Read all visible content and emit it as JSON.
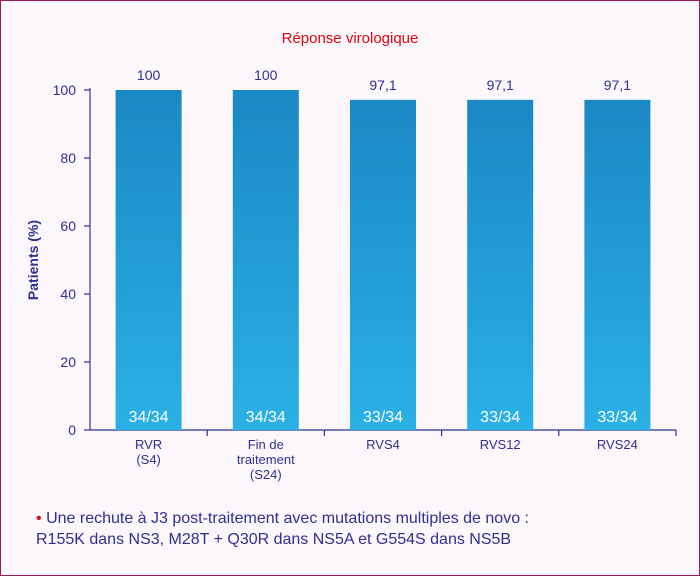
{
  "chart_data": {
    "type": "bar",
    "title": "Réponse virologique",
    "ylabel": "Patients (%)",
    "xlabel": "",
    "ylim": [
      0,
      100
    ],
    "yticks": [
      0,
      20,
      40,
      60,
      80,
      100
    ],
    "grid": false,
    "categories": [
      [
        "RVR",
        "(S4)"
      ],
      [
        "Fin de",
        "traitement",
        "(S24)"
      ],
      [
        "RVS4"
      ],
      [
        "RVS12"
      ],
      [
        "RVS24"
      ]
    ],
    "values": [
      100,
      100,
      97.1,
      97.1,
      97.1
    ],
    "value_labels": [
      "100",
      "100",
      "97,1",
      "97,1",
      "97,1"
    ],
    "inner_labels": [
      "34/34",
      "34/34",
      "33/34",
      "33/34",
      "33/34"
    ],
    "colors": {
      "bar_top": "#1a88c4",
      "bar_bottom": "#2ab1e6",
      "axis": "#2e3192",
      "title": "#e30613"
    }
  },
  "footnote": {
    "bullet": "•",
    "line1": "Une rechute à J3 post-traitement avec mutations multiples de novo :",
    "line2": "R155K dans NS3, M28T + Q30R dans NS5A et G554S dans NS5B"
  }
}
